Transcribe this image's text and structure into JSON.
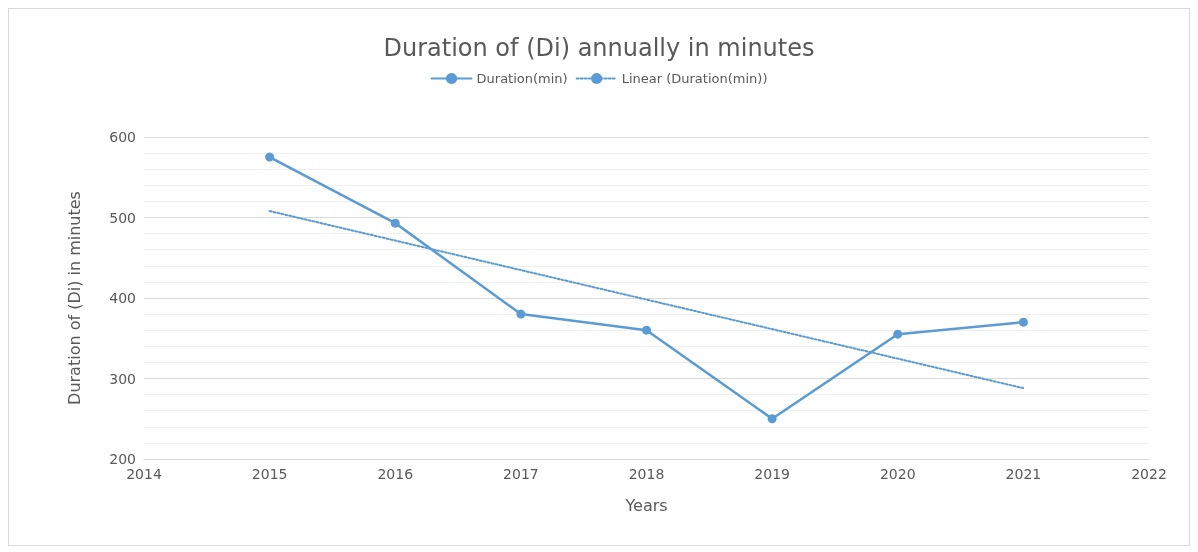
{
  "chart_data": {
    "type": "line",
    "title": "Duration of (Di) annually in minutes",
    "xlabel": "Years",
    "ylabel": "Duration of (Di) in minutes",
    "x": [
      2015,
      2016,
      2017,
      2018,
      2019,
      2020,
      2021
    ],
    "series": [
      {
        "name": "Duration(min)",
        "color": "#5b9bd5",
        "values": [
          575,
          493,
          380,
          360,
          250,
          355,
          370
        ],
        "marker": "circle",
        "line_style": "solid"
      },
      {
        "name": "Linear (Duration(min))",
        "color": "#5b9bd5",
        "type": "line",
        "x": [
          2015,
          2021
        ],
        "values": [
          508,
          288
        ],
        "marker": "none",
        "line_style": "dotted"
      }
    ],
    "xlim": [
      2014,
      2022
    ],
    "xticks": [
      2014,
      2015,
      2016,
      2017,
      2018,
      2019,
      2020,
      2021,
      2022
    ],
    "ylim": [
      200,
      600
    ],
    "yticks": [
      200,
      300,
      400,
      500,
      600
    ],
    "grid": "y",
    "legend": "top"
  }
}
